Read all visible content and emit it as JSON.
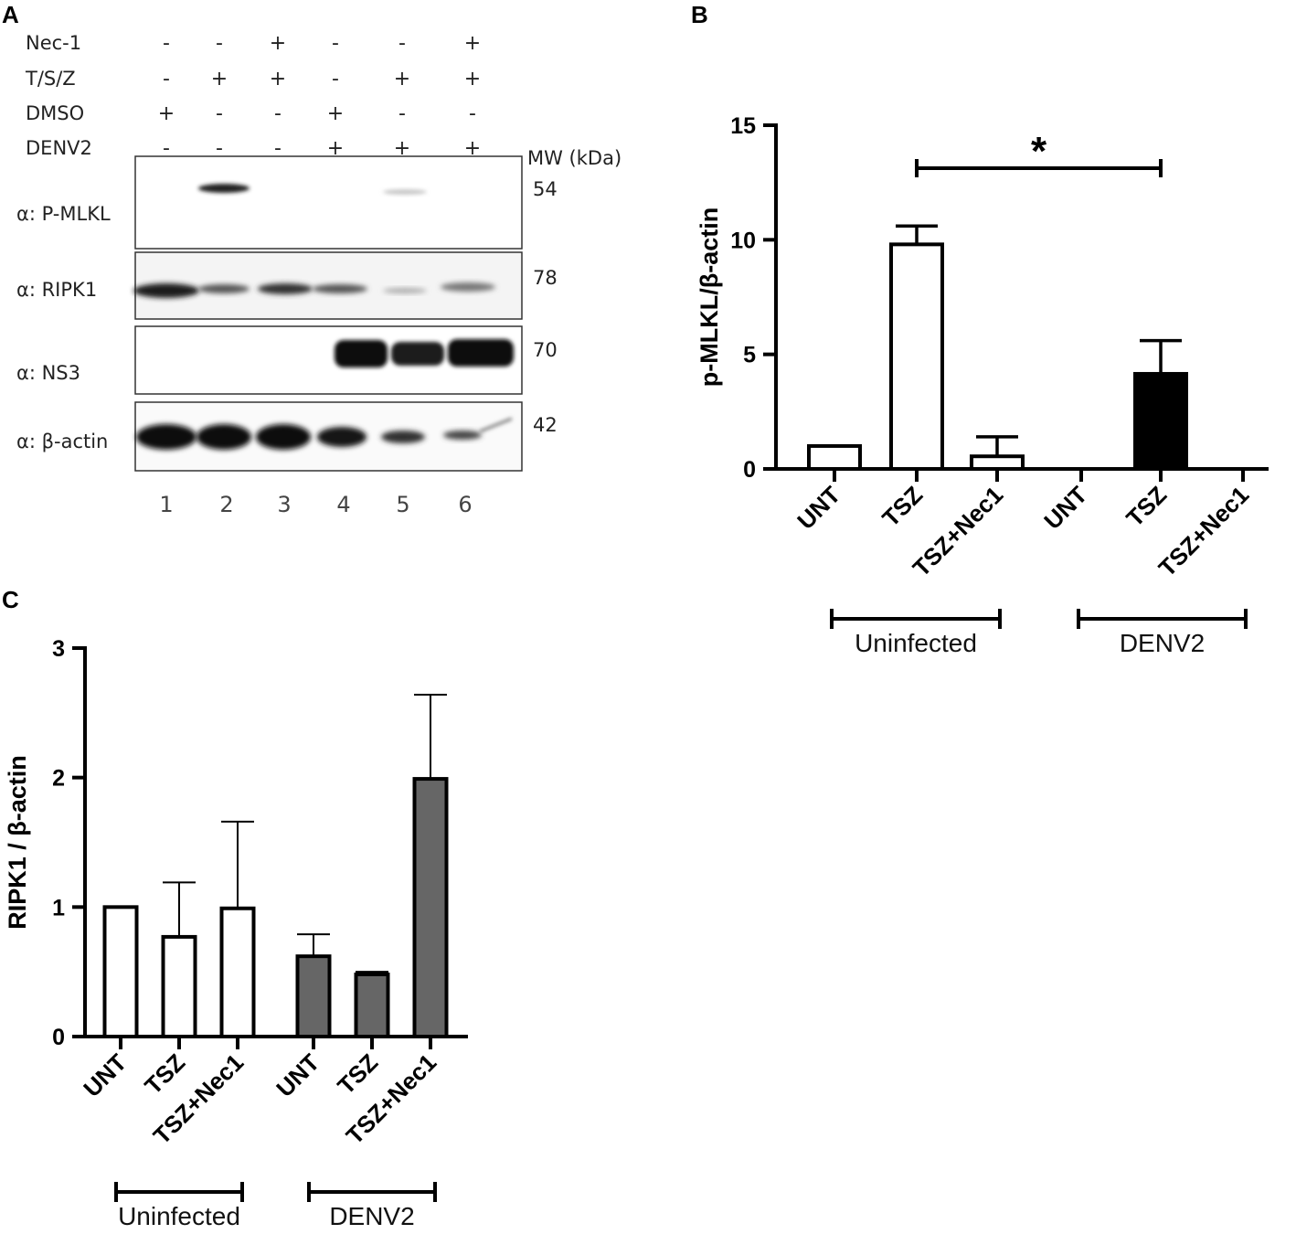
{
  "panel_a": {
    "letter": "A",
    "conditions": [
      {
        "label": "Nec-1",
        "signs": [
          "-",
          "-",
          "+",
          "-",
          "-",
          "+"
        ]
      },
      {
        "label": "T/S/Z",
        "signs": [
          "-",
          "+",
          "+",
          "-",
          "+",
          "+"
        ]
      },
      {
        "label": "DMSO",
        "signs": [
          "+",
          "-",
          "-",
          "+",
          "-",
          "-"
        ]
      },
      {
        "label": "DENV2",
        "signs": [
          "-",
          "-",
          "-",
          "+",
          "+",
          "+"
        ]
      }
    ],
    "mw_header": "MW (kDa)",
    "blots": [
      {
        "label": "α: P-MLKL",
        "mw": "54"
      },
      {
        "label": "α: RIPK1",
        "mw": "78"
      },
      {
        "label": "α: NS3",
        "mw": "70"
      },
      {
        "label": "α: β-actin",
        "mw": "42"
      }
    ],
    "lanes": [
      "1",
      "2",
      "3",
      "4",
      "5",
      "6"
    ]
  },
  "chart_data": [
    {
      "panel": "B",
      "type": "bar",
      "ylabel": "p-MLKL/β-actin",
      "ylim": [
        0,
        15
      ],
      "yticks": [
        "0",
        "5",
        "10",
        "15"
      ],
      "categories": [
        "UNT",
        "TSZ",
        "TSZ+Nec1",
        "UNT",
        "TSZ",
        "TSZ+Nec1"
      ],
      "values": [
        1.0,
        9.8,
        0.55,
        0.0,
        4.15,
        0.0
      ],
      "errors": [
        0.0,
        0.8,
        0.85,
        0.0,
        1.45,
        0.0
      ],
      "bar_colors": [
        "#ffffff",
        "#ffffff",
        "#ffffff",
        "#000000",
        "#000000",
        "#000000"
      ],
      "groups": [
        {
          "label": "Uninfected",
          "from": 0,
          "to": 2
        },
        {
          "label": "DENV2",
          "from": 3,
          "to": 5
        }
      ],
      "significance": {
        "from": 1,
        "to": 4,
        "label": "*"
      }
    },
    {
      "panel": "C",
      "type": "bar",
      "ylabel": "RIPK1 / β-actin",
      "ylim": [
        0,
        3
      ],
      "yticks": [
        "0",
        "1",
        "2",
        "3"
      ],
      "categories": [
        "UNT",
        "TSZ",
        "TSZ+Nec1",
        "UNT",
        "TSZ",
        "TSZ+Nec1"
      ],
      "values": [
        1.0,
        0.77,
        0.99,
        0.62,
        0.48,
        1.99
      ],
      "errors": [
        0.0,
        0.42,
        0.67,
        0.17,
        0.02,
        0.65
      ],
      "bar_colors": [
        "#ffffff",
        "#ffffff",
        "#ffffff",
        "#666666",
        "#666666",
        "#666666"
      ],
      "groups": [
        {
          "label": "Uninfected",
          "from": 0,
          "to": 2
        },
        {
          "label": "DENV2",
          "from": 3,
          "to": 5
        }
      ]
    }
  ]
}
